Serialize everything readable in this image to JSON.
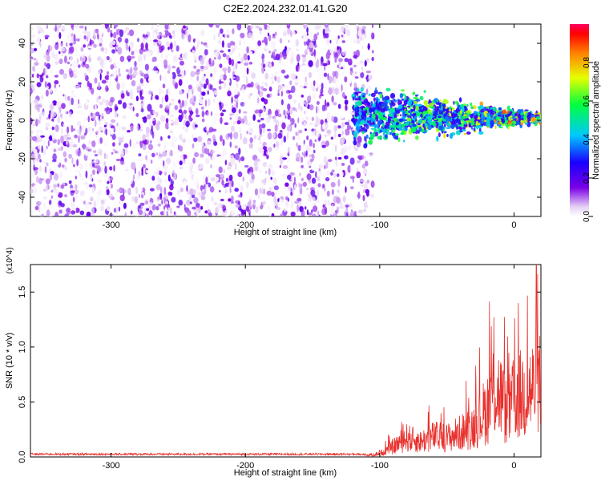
{
  "title": "C2E2.2024.232.01.41.G20",
  "chart_data": [
    {
      "type": "heatmap",
      "title": "C2E2.2024.232.01.41.G20",
      "xlabel": "Height of straight line (km)",
      "ylabel": "Frequency (Hz)",
      "xlim": [
        -360,
        20
      ],
      "ylim": [
        -50,
        50
      ],
      "x_ticks": [
        -300,
        -200,
        -100,
        0
      ],
      "y_ticks": [
        -40,
        -20,
        0,
        20,
        40
      ],
      "x_tick_labels": [
        "-300",
        "-200",
        "-100",
        "0"
      ],
      "y_tick_labels": [
        "-40",
        "-20",
        "0",
        "20",
        "40"
      ],
      "colorbar": {
        "label": "Normalized spectral amplitude",
        "range": [
          0,
          1
        ],
        "ticks": [
          0.0,
          0.2,
          0.4,
          0.6,
          0.8
        ],
        "tick_labels": [
          "0.0",
          "0.2",
          "0.4",
          "0.6",
          "0.8"
        ],
        "colormap": "rainbow"
      },
      "regions": [
        {
          "x_range": [
            -360,
            -105
          ],
          "freq_range": [
            -50,
            50
          ],
          "amplitude_range": [
            0.0,
            0.2
          ]
        },
        {
          "x_range": [
            -120,
            20
          ],
          "freq_range": [
            -12,
            16
          ],
          "amplitude_range": [
            0.2,
            0.9
          ]
        }
      ],
      "grid": false
    },
    {
      "type": "line",
      "xlabel": "Height of straight line (km)",
      "ylabel": "SNR (10 * v/v)",
      "y_multiplier": "(x10^4)",
      "xlim": [
        -360,
        20
      ],
      "ylim": [
        0,
        1.75
      ],
      "x_ticks": [
        -300,
        -200,
        -100,
        0
      ],
      "y_ticks": [
        0.0,
        0.5,
        1.0,
        1.5
      ],
      "x_tick_labels": [
        "-300",
        "-200",
        "-100",
        "0"
      ],
      "y_tick_labels": [
        "0.0",
        "0.5",
        "1.0",
        "1.5"
      ],
      "color": "#e8302c",
      "series": [
        {
          "x": [
            -360,
            -300,
            -200,
            -110,
            -100,
            -90,
            -80,
            -70,
            -60,
            -50,
            -40,
            -30,
            -20,
            -15,
            -10,
            -5,
            0,
            10,
            20
          ],
          "y": [
            0.02,
            0.02,
            0.02,
            0.02,
            0.05,
            0.15,
            0.28,
            0.22,
            0.3,
            0.28,
            0.35,
            0.45,
            0.7,
            1.0,
            0.9,
            0.6,
            0.85,
            0.95,
            1.05
          ]
        }
      ],
      "grid": false
    }
  ]
}
